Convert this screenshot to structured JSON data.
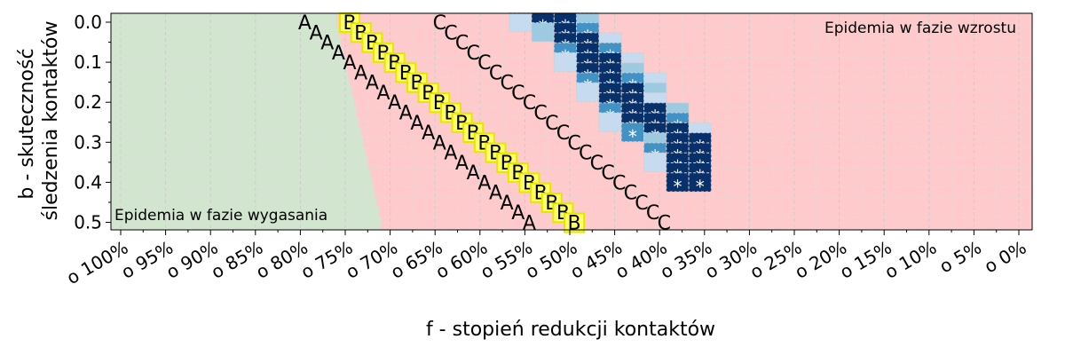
{
  "chart_data": {
    "type": "heatmap",
    "xlabel": "f - stopień redukcji kontaktów",
    "ylabel_lines": [
      "b - skuteczność",
      "śledzenia kontaktów"
    ],
    "x_tick_labels": [
      "o 100%",
      "o 95%",
      "o 90%",
      "o 85%",
      "o 80%",
      "o 75%",
      "o 70%",
      "o 65%",
      "o 60%",
      "o 55%",
      "o 50%",
      "o 45%",
      "o 40%",
      "o 35%",
      "o 30%",
      "o 25%",
      "o 20%",
      "o 15%",
      "o 10%",
      "o 5%",
      "o 0%"
    ],
    "x_tick_values": [
      1.0,
      0.95,
      0.9,
      0.85,
      0.8,
      0.75,
      0.7,
      0.65,
      0.6,
      0.55,
      0.5,
      0.45,
      0.4,
      0.35,
      0.3,
      0.25,
      0.2,
      0.15,
      0.1,
      0.05,
      0.0
    ],
    "x_range": [
      1.0,
      0.0
    ],
    "y_tick_labels": [
      "0.0",
      "0.1",
      "0.2",
      "0.3",
      "0.4",
      "0.5"
    ],
    "y_tick_values": [
      0.0,
      0.1,
      0.2,
      0.3,
      0.4,
      0.5
    ],
    "y_range": [
      0.0,
      0.5
    ],
    "b_values": [
      0.0,
      0.025,
      0.05,
      0.075,
      0.1,
      0.125,
      0.15,
      0.175,
      0.2,
      0.225,
      0.25,
      0.275,
      0.3,
      0.325,
      0.35,
      0.375,
      0.4,
      0.425,
      0.45,
      0.475,
      0.5
    ],
    "f_values": [
      0.555,
      0.53,
      0.505,
      0.48,
      0.455,
      0.43,
      0.405,
      0.38,
      0.355
    ],
    "region_labels": {
      "decline": "Epidemia w fazie wygasania",
      "growth": "Epidemia w fazie wzrostu"
    },
    "region_colors": {
      "decline": "#d2e6cf",
      "growth": "#ffcacb"
    },
    "boundary_offset": 0.1,
    "boundary_start": 0.76,
    "marker_a": {
      "label": "A",
      "f_at_b0": 0.795,
      "step": 0.05
    },
    "marker_b": {
      "label": "B",
      "f_at_b0": 0.745,
      "step": 0.05,
      "box_color": "#ffff66"
    },
    "marker_c": {
      "label": "C",
      "f_at_b0": 0.645,
      "step": 0.05
    },
    "star_symbol": "*",
    "heat_levels": [
      "#f7fbff",
      "#c6dbef",
      "#9ecae1",
      "#4292c6",
      "#08306b"
    ],
    "heat_cells": [
      [
        1,
        4,
        4,
        2,
        0,
        0,
        0,
        0,
        0
      ],
      [
        0,
        2,
        4,
        3,
        0,
        0,
        0,
        0,
        0
      ],
      [
        0,
        0,
        4,
        4,
        1,
        0,
        0,
        0,
        0
      ],
      [
        0,
        0,
        3,
        4,
        3,
        0,
        0,
        0,
        0
      ],
      [
        0,
        0,
        1,
        4,
        4,
        1,
        0,
        0,
        0
      ],
      [
        0,
        0,
        0,
        4,
        4,
        2,
        0,
        0,
        0
      ],
      [
        0,
        0,
        0,
        3,
        4,
        3,
        1,
        0,
        0
      ],
      [
        0,
        0,
        0,
        1,
        4,
        4,
        2,
        0,
        0
      ],
      [
        0,
        0,
        0,
        0,
        4,
        4,
        1,
        0,
        0
      ],
      [
        0,
        0,
        0,
        0,
        3,
        4,
        4,
        2,
        0
      ],
      [
        0,
        0,
        0,
        0,
        1,
        4,
        4,
        3,
        0
      ],
      [
        0,
        0,
        0,
        0,
        0,
        3,
        4,
        4,
        1
      ],
      [
        0,
        0,
        0,
        0,
        0,
        0,
        2,
        4,
        4
      ],
      [
        0,
        0,
        0,
        0,
        0,
        0,
        3,
        4,
        4
      ],
      [
        0,
        0,
        0,
        0,
        0,
        0,
        1,
        4,
        4
      ],
      [
        0,
        0,
        0,
        0,
        0,
        0,
        0,
        4,
        4
      ],
      [
        0,
        0,
        0,
        0,
        0,
        0,
        0,
        4,
        4
      ],
      [
        0,
        0,
        0,
        0,
        0,
        0,
        0,
        0,
        0
      ],
      [
        0,
        0,
        0,
        0,
        0,
        0,
        0,
        0,
        0
      ],
      [
        0,
        0,
        0,
        0,
        0,
        0,
        0,
        0,
        0
      ],
      [
        0,
        0,
        0,
        0,
        0,
        0,
        0,
        0,
        0
      ]
    ],
    "grid": true,
    "legend": "none"
  }
}
